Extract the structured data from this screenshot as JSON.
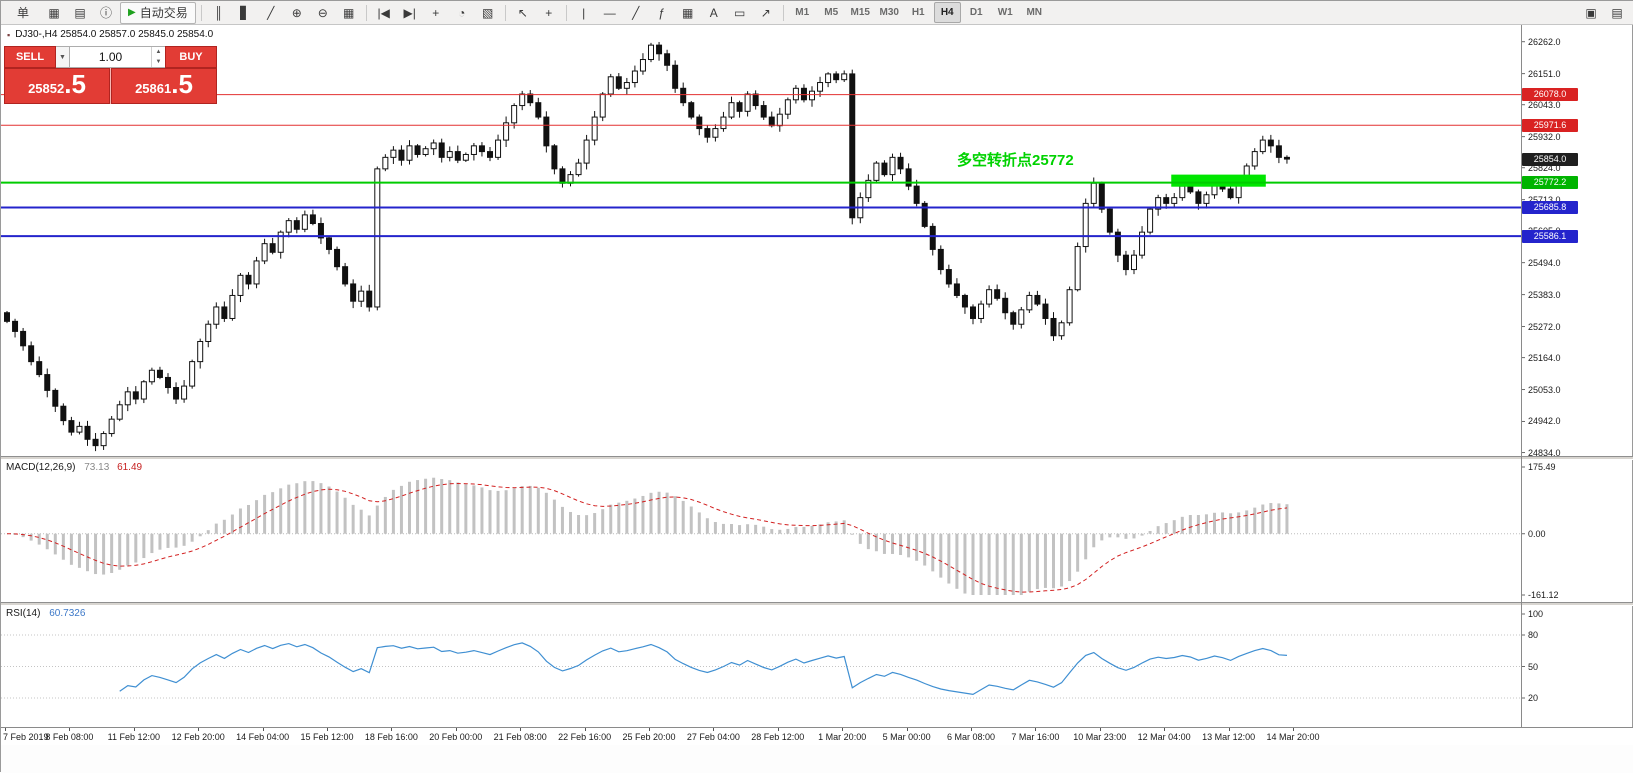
{
  "toolbar": {
    "buttons": [
      {
        "name": "new-order-button",
        "label": "单",
        "type": "txt"
      },
      {
        "name": "new-chart-icon",
        "label": "▦"
      },
      {
        "name": "profiles-icon",
        "label": "▤"
      },
      {
        "name": "data-window-icon",
        "label": "ⓘ"
      },
      {
        "name": "autotrade-button",
        "label": "自动交易",
        "type": "auto",
        "play": "▶"
      },
      {
        "sep": true
      },
      {
        "name": "bar-chart-icon",
        "label": "║"
      },
      {
        "name": "candlestick-chart-icon",
        "label": "▋"
      },
      {
        "name": "line-chart-icon",
        "label": "╱"
      },
      {
        "name": "zoom-in-icon",
        "label": "⊕"
      },
      {
        "name": "zoom-out-icon",
        "label": "⊖"
      },
      {
        "name": "tile-windows-icon",
        "label": "▦"
      },
      {
        "sep": true
      },
      {
        "name": "step-back-icon",
        "label": "|◀"
      },
      {
        "name": "step-forward-icon",
        "label": "▶|"
      },
      {
        "name": "indicators-icon",
        "label": "+"
      },
      {
        "name": "period-icon",
        "label": "◔"
      },
      {
        "name": "templates-icon",
        "label": "▧"
      },
      {
        "sep": true
      },
      {
        "name": "cursor-icon",
        "label": "↖"
      },
      {
        "name": "crosshair-icon",
        "label": "+"
      },
      {
        "sep": true
      },
      {
        "name": "vertical-line-icon",
        "label": "|"
      },
      {
        "name": "horizontal-line-icon",
        "label": "—"
      },
      {
        "name": "trendline-icon",
        "label": "╱"
      },
      {
        "name": "fibonacci-icon",
        "label": "ƒ"
      },
      {
        "name": "grid-icon",
        "label": "▦"
      },
      {
        "name": "text-icon",
        "label": "A"
      },
      {
        "name": "label-icon",
        "label": "▭"
      },
      {
        "name": "arrows-icon",
        "label": "↗"
      },
      {
        "sep": true
      }
    ],
    "timeframes": [
      "M1",
      "M5",
      "M15",
      "M30",
      "H1",
      "H4",
      "D1",
      "W1",
      "MN"
    ],
    "active_timeframe": "H4",
    "right_icons": [
      {
        "name": "layout-icon",
        "label": "▣"
      },
      {
        "name": "panel-icon",
        "label": "▤"
      }
    ]
  },
  "chart": {
    "header_icon": "▪",
    "header": "DJ30-,H4  25854.0 25857.0 25845.0 25854.0",
    "one_click": {
      "sell_label": "SELL",
      "buy_label": "BUY",
      "volume": "1.00",
      "sell_price": "25852",
      "sell_frac": ".5",
      "buy_price": "25861",
      "buy_frac": ".5"
    },
    "annotation": {
      "text": "多空转折点25772",
      "color": "#00d200"
    },
    "levels": [
      {
        "price": 26078.0,
        "color": "#e33030",
        "width": 1
      },
      {
        "price": 25971.6,
        "color": "#e33030",
        "width": 1
      },
      {
        "price": 25772.2,
        "color": "#00cc00",
        "width": 2
      },
      {
        "price": 25685.8,
        "color": "#2424cc",
        "width": 2
      },
      {
        "price": 25586.1,
        "color": "#2424cc",
        "width": 2
      }
    ],
    "price_tags": [
      {
        "text": "26078.0",
        "price": 26078.0,
        "bg": "#d92222"
      },
      {
        "text": "25971.6",
        "price": 25971.6,
        "bg": "#d92222"
      },
      {
        "text": "25854.0",
        "price": 25854.0,
        "bg": "#1f1f1f"
      },
      {
        "text": "25772.2",
        "price": 25772.2,
        "bg": "#00b400"
      },
      {
        "text": "25685.8",
        "price": 25685.8,
        "bg": "#2424cc"
      },
      {
        "text": "25586.1",
        "price": 25586.1,
        "bg": "#2424cc"
      }
    ],
    "highlight_rect": {
      "bar_start": 145,
      "bar_end": 156,
      "price_top": 25800,
      "price_bottom": 25758,
      "color": "#00e600"
    },
    "y_ticks": [
      "26262.0",
      "26151.0",
      "26043.0",
      "25932.0",
      "25824.0",
      "25713.0",
      "25605.0",
      "25494.0",
      "25383.0",
      "25272.0",
      "25164.0",
      "25053.0",
      "24942.0",
      "24834.0"
    ]
  },
  "macd": {
    "label": "MACD(12,26,9)",
    "value_main": "73.13",
    "value_signal": "61.49",
    "ticks": [
      "175.49",
      "0.00",
      "-161.12"
    ]
  },
  "rsi": {
    "label": "RSI(14)",
    "value": "60.7326",
    "ticks": [
      "100",
      "80",
      "50",
      "20"
    ],
    "levels": [
      80,
      50,
      20
    ]
  },
  "time_axis": {
    "labels": [
      "7 Feb 2019",
      "8 Feb 08:00",
      "11 Feb 12:00",
      "12 Feb 20:00",
      "14 Feb 04:00",
      "15 Feb 12:00",
      "18 Feb 16:00",
      "20 Feb 00:00",
      "21 Feb 08:00",
      "22 Feb 16:00",
      "25 Feb 20:00",
      "27 Feb 04:00",
      "28 Feb 12:00",
      "1 Mar 20:00",
      "5 Mar 00:00",
      "6 Mar 08:00",
      "7 Mar 16:00",
      "10 Mar 23:00",
      "12 Mar 04:00",
      "13 Mar 12:00",
      "14 Mar 20:00"
    ]
  },
  "chart_data": {
    "type": "candlestick",
    "symbol": "DJ30-",
    "period": "H4",
    "title": "DJ30-,H4",
    "y_axis": {
      "max": 26320,
      "min": 24822
    },
    "macd_axis": {
      "max": 175.49,
      "min": -161.12
    },
    "rsi_axis": {
      "max": 100,
      "min": 0
    },
    "first_open": 25320,
    "closes": [
      25290,
      25255,
      25205,
      25150,
      25105,
      25050,
      24995,
      24945,
      24905,
      24925,
      24880,
      24858,
      24900,
      24950,
      25000,
      25045,
      25020,
      25080,
      25120,
      25095,
      25060,
      25020,
      25065,
      25150,
      25220,
      25280,
      25340,
      25300,
      25380,
      25450,
      25420,
      25500,
      25560,
      25530,
      25600,
      25640,
      25610,
      25660,
      25630,
      25580,
      25540,
      25480,
      25420,
      25360,
      25395,
      25340,
      25820,
      25860,
      25885,
      25850,
      25900,
      25870,
      25890,
      25910,
      25860,
      25880,
      25850,
      25870,
      25900,
      25880,
      25860,
      25920,
      25980,
      26040,
      26080,
      26050,
      26000,
      25900,
      25820,
      25770,
      25800,
      25840,
      25920,
      26000,
      26080,
      26140,
      26100,
      26120,
      26160,
      26200,
      26250,
      26220,
      26180,
      26100,
      26050,
      26000,
      25960,
      25930,
      25960,
      26000,
      26050,
      26020,
      26080,
      26040,
      26000,
      25970,
      26010,
      26060,
      26100,
      26060,
      26090,
      26120,
      26150,
      26130,
      26150,
      25650,
      25720,
      25780,
      25840,
      25800,
      25860,
      25820,
      25760,
      25700,
      25620,
      25540,
      25470,
      25420,
      25380,
      25340,
      25300,
      25350,
      25400,
      25370,
      25320,
      25280,
      25330,
      25380,
      25350,
      25300,
      25240,
      25285,
      25400,
      25550,
      25700,
      25770,
      25680,
      25600,
      25520,
      25470,
      25520,
      25600,
      25680,
      25720,
      25700,
      25720,
      25760,
      25740,
      25700,
      25730,
      25770,
      25750,
      25720,
      25780,
      25830,
      25880,
      25920,
      25900,
      25860,
      25854
    ]
  }
}
